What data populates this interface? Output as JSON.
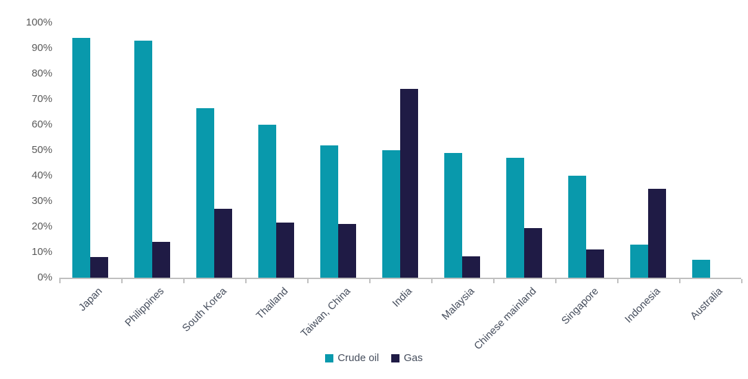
{
  "chart_data": {
    "type": "bar",
    "categories": [
      "Japan",
      "Philippines",
      "South Korea",
      "Thailand",
      "Taiwan, China",
      "India",
      "Malaysia",
      "Chinese mainland",
      "Singapore",
      "Indonesia",
      "Australia"
    ],
    "series": [
      {
        "name": "Crude oil",
        "color": "#0999AC",
        "values": [
          94,
          93,
          66.5,
          60,
          52,
          50,
          49,
          47,
          40,
          13,
          7
        ]
      },
      {
        "name": "Gas",
        "color": "#1F1B45",
        "values": [
          8,
          14,
          27,
          21.5,
          21,
          74,
          8.5,
          19.5,
          11,
          35,
          0
        ]
      }
    ],
    "title": "",
    "xlabel": "",
    "ylabel": "",
    "ylim": [
      0,
      100
    ],
    "ytick_labels": [
      "100%",
      "90%",
      "80%",
      "70%",
      "60%",
      "50%",
      "40%",
      "30%",
      "20%",
      "10%",
      "0%"
    ],
    "grid": false,
    "legend_position": "bottom-center",
    "colors": {
      "background": "#FFFFFF",
      "axis_line": "#BFBFBF",
      "ytick_text": "#595959",
      "xtick_text": "#454D5C",
      "legend_text": "#454D5C"
    }
  }
}
